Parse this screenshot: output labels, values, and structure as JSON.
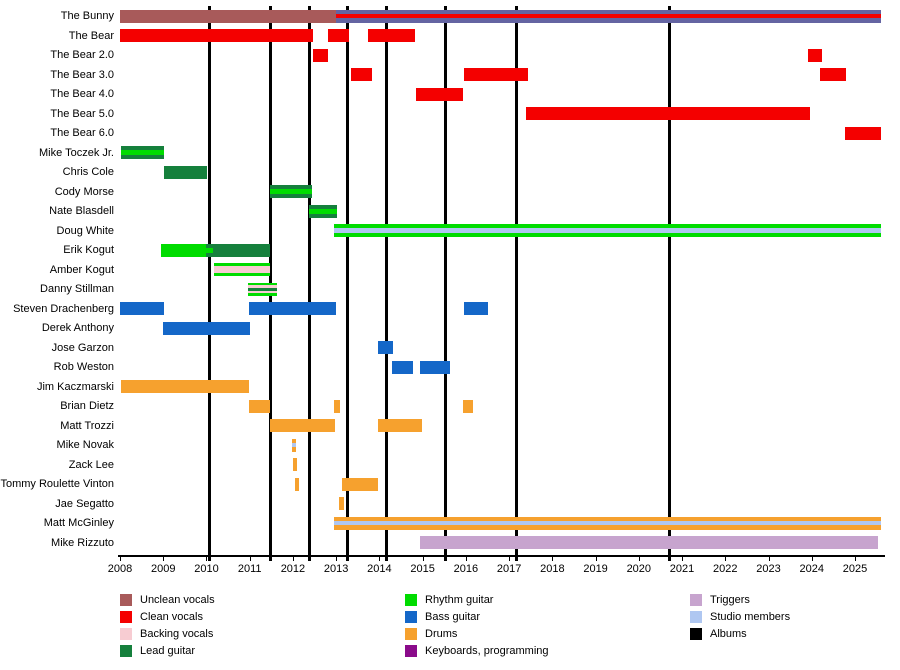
{
  "chart_data": {
    "type": "gantt",
    "title": "",
    "x_axis": {
      "start": 2008,
      "end": 2025,
      "tick_years": [
        2008,
        2009,
        2010,
        2011,
        2012,
        2013,
        2014,
        2015,
        2016,
        2017,
        2018,
        2019,
        2020,
        2021,
        2022,
        2023,
        2024,
        2025
      ]
    },
    "palette": {
      "unclean": "#A85A5A",
      "clean": "#F40000",
      "backing": "#F7CCD2",
      "lead": "#15803C",
      "rhythm": "#00DC00",
      "bass": "#1467C8",
      "drums": "#F6A12E",
      "keyboards": "#8A0B8A",
      "triggers": "#C7A4CE",
      "studio": "#AFC7F1",
      "albums": "#000000",
      "mixed": "#6464A2"
    },
    "album_release_years": [
      2010.08,
      2011.49,
      2012.39,
      2013.27,
      2014.16,
      2015.52,
      2017.18,
      2020.72
    ],
    "members": [
      {
        "name": "The Bunny",
        "bars": [
          {
            "start": 2008.0,
            "end": 2013.0,
            "stripes": [
              "unclean"
            ]
          },
          {
            "start": 2013.0,
            "end": 2025.6,
            "stripes": [
              "mixed",
              "clean",
              "mixed"
            ],
            "weights": [
              4.5,
              4,
              4.5
            ]
          }
        ]
      },
      {
        "name": "The Bear",
        "bars": [
          {
            "start": 2008.0,
            "end": 2012.46,
            "stripes": [
              "clean"
            ]
          },
          {
            "start": 2012.8,
            "end": 2013.3,
            "stripes": [
              "clean"
            ]
          },
          {
            "start": 2013.74,
            "end": 2014.82,
            "stripes": [
              "clean"
            ]
          }
        ]
      },
      {
        "name": "The Bear 2.0",
        "bars": [
          {
            "start": 2012.46,
            "end": 2012.81,
            "stripes": [
              "clean"
            ]
          },
          {
            "start": 2023.91,
            "end": 2024.23,
            "stripes": [
              "clean"
            ]
          }
        ]
      },
      {
        "name": "The Bear 3.0",
        "bars": [
          {
            "start": 2013.34,
            "end": 2013.83,
            "stripes": [
              "clean"
            ]
          },
          {
            "start": 2015.96,
            "end": 2017.44,
            "stripes": [
              "clean"
            ]
          },
          {
            "start": 2024.19,
            "end": 2024.79,
            "stripes": [
              "clean"
            ]
          }
        ]
      },
      {
        "name": "The Bear 4.0",
        "bars": [
          {
            "start": 2014.85,
            "end": 2015.94,
            "stripes": [
              "clean"
            ]
          }
        ]
      },
      {
        "name": "The Bear 5.0",
        "bars": [
          {
            "start": 2017.39,
            "end": 2023.96,
            "stripes": [
              "clean"
            ]
          }
        ]
      },
      {
        "name": "The Bear 6.0",
        "bars": [
          {
            "start": 2024.77,
            "end": 2025.6,
            "stripes": [
              "clean"
            ]
          }
        ]
      },
      {
        "name": "Mike Toczek Jr.",
        "bars": [
          {
            "start": 2008.02,
            "end": 2009.02,
            "stripes": [
              "lead",
              "rhythm",
              "lead"
            ],
            "weights": [
              4,
              5,
              4
            ]
          }
        ]
      },
      {
        "name": "Chris Cole",
        "bars": [
          {
            "start": 2009.02,
            "end": 2010.01,
            "stripes": [
              "lead"
            ]
          }
        ]
      },
      {
        "name": "Cody Morse",
        "bars": [
          {
            "start": 2011.47,
            "end": 2012.44,
            "stripes": [
              "lead",
              "rhythm",
              "lead"
            ],
            "weights": [
              4,
              5,
              4
            ]
          }
        ]
      },
      {
        "name": "Nate Blasdell",
        "bars": [
          {
            "start": 2012.37,
            "end": 2013.02,
            "stripes": [
              "lead",
              "rhythm",
              "lead"
            ],
            "weights": [
              4,
              5,
              4
            ]
          }
        ]
      },
      {
        "name": "Doug White",
        "bars": [
          {
            "start": 2012.95,
            "end": 2025.6,
            "stripes": [
              "rhythm",
              "studio",
              "rhythm"
            ],
            "weights": [
              4,
              5,
              4
            ]
          }
        ]
      },
      {
        "name": "Erik Kogut",
        "bars": [
          {
            "start": 2009.99,
            "end": 2011.47,
            "stripes": [
              "lead"
            ]
          },
          {
            "start": 2008.95,
            "end": 2009.99,
            "stripes": [
              "rhythm"
            ]
          },
          {
            "start": 2009.99,
            "end": 2010.15,
            "stripes": [
              "rhythm"
            ],
            "inset": true
          }
        ]
      },
      {
        "name": "Amber Kogut",
        "bars": [
          {
            "start": 2010.17,
            "end": 2011.47,
            "stripes": [
              "rhythm",
              "backing",
              "rhythm"
            ],
            "weights": [
              3,
              7,
              3
            ]
          }
        ]
      },
      {
        "name": "Danny Stillman",
        "bars": [
          {
            "start": 2010.96,
            "end": 2011.63,
            "stripes": [
              "rhythm",
              "backing",
              "lead",
              "backing",
              "rhythm"
            ],
            "weights": [
              2.5,
              2.5,
              3,
              2.5,
              2.5
            ]
          }
        ]
      },
      {
        "name": "Steven Drachenberg",
        "bars": [
          {
            "start": 2008.0,
            "end": 2009.02,
            "stripes": [
              "bass"
            ]
          },
          {
            "start": 2010.98,
            "end": 2013.0,
            "stripes": [
              "bass"
            ]
          },
          {
            "start": 2015.96,
            "end": 2016.51,
            "stripes": [
              "bass"
            ]
          }
        ]
      },
      {
        "name": "Derek Anthony",
        "bars": [
          {
            "start": 2008.99,
            "end": 2011.01,
            "stripes": [
              "bass"
            ]
          }
        ]
      },
      {
        "name": "Jose Garzon",
        "bars": [
          {
            "start": 2013.97,
            "end": 2014.31,
            "stripes": [
              "bass"
            ]
          }
        ]
      },
      {
        "name": "Rob Weston",
        "bars": [
          {
            "start": 2014.3,
            "end": 2014.78,
            "stripes": [
              "bass"
            ]
          },
          {
            "start": 2014.95,
            "end": 2015.64,
            "stripes": [
              "bass"
            ]
          }
        ]
      },
      {
        "name": "Jim Kaczmarski",
        "bars": [
          {
            "start": 2008.02,
            "end": 2010.98,
            "stripes": [
              "drums"
            ]
          }
        ]
      },
      {
        "name": "Brian Dietz",
        "bars": [
          {
            "start": 2010.98,
            "end": 2011.47,
            "stripes": [
              "drums"
            ]
          },
          {
            "start": 2012.96,
            "end": 2013.1,
            "stripes": [
              "drums"
            ]
          },
          {
            "start": 2015.93,
            "end": 2016.16,
            "stripes": [
              "drums"
            ]
          }
        ]
      },
      {
        "name": "Matt Trozzi",
        "bars": [
          {
            "start": 2011.47,
            "end": 2012.97,
            "stripes": [
              "drums"
            ]
          },
          {
            "start": 2013.97,
            "end": 2014.98,
            "stripes": [
              "drums"
            ]
          }
        ]
      },
      {
        "name": "Mike Novak",
        "bars": [
          {
            "start": 2011.98,
            "end": 2012.07,
            "stripes": [
              "drums",
              "studio",
              "drums"
            ],
            "weights": [
              4,
              4,
              5
            ]
          }
        ]
      },
      {
        "name": "Zack Lee",
        "bars": [
          {
            "start": 2012.0,
            "end": 2012.09,
            "stripes": [
              "drums"
            ]
          }
        ]
      },
      {
        "name": "Tommy Roulette Vinton",
        "bars": [
          {
            "start": 2012.05,
            "end": 2012.14,
            "stripes": [
              "drums"
            ]
          },
          {
            "start": 2013.13,
            "end": 2013.97,
            "stripes": [
              "drums"
            ]
          }
        ]
      },
      {
        "name": "Jae Segatto",
        "bars": [
          {
            "start": 2013.06,
            "end": 2013.18,
            "stripes": [
              "drums"
            ]
          }
        ]
      },
      {
        "name": "Matt McGinley",
        "bars": [
          {
            "start": 2012.95,
            "end": 2025.6,
            "stripes": [
              "drums",
              "studio",
              "drums"
            ],
            "weights": [
              4,
              4,
              5
            ]
          }
        ]
      },
      {
        "name": "Mike Rizzuto",
        "bars": [
          {
            "start": 2014.95,
            "end": 2025.53,
            "stripes": [
              "triggers"
            ]
          }
        ]
      }
    ],
    "legend": {
      "columns": [
        [
          {
            "label": "Unclean vocals",
            "color": "unclean"
          },
          {
            "label": "Clean vocals",
            "color": "clean"
          },
          {
            "label": "Backing vocals",
            "color": "backing"
          },
          {
            "label": "Lead guitar",
            "color": "lead"
          }
        ],
        [
          {
            "label": "Rhythm guitar",
            "color": "rhythm"
          },
          {
            "label": "Bass guitar",
            "color": "bass"
          },
          {
            "label": "Drums",
            "color": "drums"
          },
          {
            "label": "Keyboards, programming",
            "color": "keyboards"
          }
        ],
        [
          {
            "label": "Triggers",
            "color": "triggers"
          },
          {
            "label": "Studio members",
            "color": "studio"
          },
          {
            "label": "Albums",
            "color": "albums"
          }
        ]
      ]
    }
  }
}
